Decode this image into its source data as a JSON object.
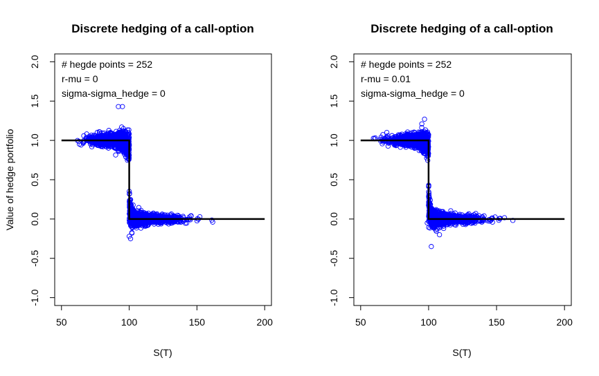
{
  "chart_data": [
    {
      "type": "scatter",
      "title": "Discrete hedging of a call-option",
      "xlabel": "S(T)",
      "ylabel": "Value of hedge portfolio",
      "xlim": [
        45,
        205
      ],
      "ylim": [
        -1.1,
        2.1
      ],
      "x_ticks": [
        "50",
        "100",
        "150",
        "200"
      ],
      "y_ticks": [
        "-1.0",
        "-0.5",
        "0.0",
        "0.5",
        "1.0",
        "1.5",
        "2.0"
      ],
      "annotations": [
        "# hegde points = 252",
        "r-mu = 0",
        "sigma-sigma_hedge = 0"
      ],
      "point_color": "#0000ff",
      "reference_line": {
        "x": [
          50,
          100,
          100,
          200
        ],
        "y": [
          1,
          1,
          0,
          0
        ],
        "color": "#000000"
      },
      "scatter_params": {
        "left_jitter": 0.035,
        "right_jitter": 0.025,
        "dip": 0.1
      },
      "outliers": [
        [
          92,
          1.43
        ],
        [
          95,
          1.43
        ],
        [
          100,
          -0.22
        ],
        [
          101,
          -0.25
        ],
        [
          102,
          -0.18
        ],
        [
          103,
          0.12
        ]
      ]
    },
    {
      "type": "scatter",
      "title": "Discrete hedging of a call-option",
      "xlabel": "S(T)",
      "ylabel": "",
      "xlim": [
        45,
        205
      ],
      "ylim": [
        -1.1,
        2.1
      ],
      "x_ticks": [
        "50",
        "100",
        "150",
        "200"
      ],
      "y_ticks": [
        "-1.0",
        "-0.5",
        "0.0",
        "0.5",
        "1.0",
        "1.5",
        "2.0"
      ],
      "annotations": [
        "# hegde points = 252",
        "r-mu = 0.01",
        "sigma-sigma_hedge = 0"
      ],
      "point_color": "#0000ff",
      "reference_line": {
        "x": [
          50,
          100,
          100,
          200
        ],
        "y": [
          1,
          1,
          0,
          0
        ],
        "color": "#000000"
      },
      "scatter_params": {
        "left_jitter": 0.03,
        "right_jitter": 0.025,
        "dip": 0.08
      },
      "outliers": [
        [
          97,
          1.27
        ],
        [
          95,
          1.21
        ],
        [
          102,
          -0.35
        ],
        [
          99,
          -0.05
        ],
        [
          108,
          -0.2
        ]
      ]
    }
  ]
}
